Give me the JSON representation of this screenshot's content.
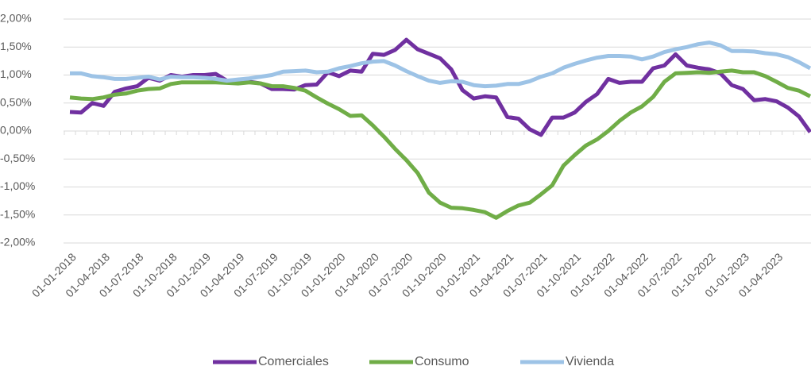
{
  "chart_data": {
    "type": "line",
    "categories": [
      "01-01-2018",
      null,
      null,
      "01-04-2018",
      null,
      null,
      "01-07-2018",
      null,
      null,
      "01-10-2018",
      null,
      null,
      "01-01-2019",
      null,
      null,
      "01-04-2019",
      null,
      null,
      "01-07-2019",
      null,
      null,
      "01-10-2019",
      null,
      null,
      "01-01-2020",
      null,
      null,
      "01-04-2020",
      null,
      null,
      "01-07-2020",
      null,
      null,
      "01-10-2020",
      null,
      null,
      "01-01-2021",
      null,
      null,
      "01-04-2021",
      null,
      null,
      "01-07-2021",
      null,
      null,
      "01-10-2021",
      null,
      null,
      "01-01-2022",
      null,
      null,
      "01-04-2022",
      null,
      null,
      "01-07-2022",
      null,
      null,
      "01-10-2022",
      null,
      null,
      "01-01-2023",
      null,
      null,
      "01-04-2023",
      null,
      null,
      null
    ],
    "series": [
      {
        "name": "Comerciales",
        "color": "#7030a0",
        "values": [
          0.34,
          0.33,
          0.5,
          0.45,
          0.7,
          0.76,
          0.8,
          0.95,
          0.9,
          1.0,
          0.97,
          1.0,
          1.0,
          1.02,
          0.9,
          0.9,
          0.88,
          0.85,
          0.75,
          0.75,
          0.74,
          0.82,
          0.83,
          1.05,
          0.98,
          1.08,
          1.06,
          1.38,
          1.36,
          1.45,
          1.63,
          1.46,
          1.38,
          1.3,
          1.1,
          0.73,
          0.58,
          0.62,
          0.6,
          0.25,
          0.22,
          0.03,
          -0.07,
          0.24,
          0.24,
          0.33,
          0.52,
          0.66,
          0.93,
          0.86,
          0.88,
          0.88,
          1.12,
          1.17,
          1.37,
          1.17,
          1.13,
          1.1,
          1.03,
          0.82,
          0.75,
          0.55,
          0.57,
          0.53,
          0.42,
          0.26,
          -0.02
        ]
      },
      {
        "name": "Consumo",
        "color": "#70ad47",
        "values": [
          0.6,
          0.58,
          0.57,
          0.6,
          0.65,
          0.67,
          0.72,
          0.75,
          0.76,
          0.84,
          0.87,
          0.87,
          0.87,
          0.87,
          0.86,
          0.85,
          0.87,
          0.85,
          0.8,
          0.8,
          0.77,
          0.72,
          0.6,
          0.49,
          0.39,
          0.27,
          0.28,
          0.1,
          -0.1,
          -0.32,
          -0.52,
          -0.75,
          -1.1,
          -1.28,
          -1.37,
          -1.38,
          -1.41,
          -1.45,
          -1.55,
          -1.43,
          -1.33,
          -1.28,
          -1.13,
          -0.97,
          -0.62,
          -0.43,
          -0.26,
          -0.15,
          0.0,
          0.18,
          0.33,
          0.44,
          0.61,
          0.88,
          1.03,
          1.04,
          1.05,
          1.04,
          1.06,
          1.08,
          1.05,
          1.05,
          0.98,
          0.88,
          0.77,
          0.72,
          0.62
        ]
      },
      {
        "name": "Vivienda",
        "color": "#9dc3e6",
        "values": [
          1.03,
          1.03,
          0.98,
          0.96,
          0.93,
          0.93,
          0.95,
          0.97,
          0.92,
          0.97,
          0.96,
          0.96,
          0.95,
          0.93,
          0.9,
          0.92,
          0.94,
          0.97,
          1.0,
          1.06,
          1.07,
          1.08,
          1.05,
          1.06,
          1.12,
          1.16,
          1.21,
          1.24,
          1.25,
          1.17,
          1.07,
          0.98,
          0.9,
          0.86,
          0.89,
          0.88,
          0.82,
          0.8,
          0.81,
          0.84,
          0.84,
          0.89,
          0.97,
          1.03,
          1.13,
          1.2,
          1.26,
          1.31,
          1.34,
          1.34,
          1.33,
          1.28,
          1.33,
          1.41,
          1.46,
          1.5,
          1.55,
          1.58,
          1.53,
          1.43,
          1.43,
          1.42,
          1.39,
          1.37,
          1.32,
          1.23,
          1.12
        ]
      }
    ],
    "ylim": [
      -2,
      2
    ],
    "yticks": [
      {
        "value": -2,
        "label": "-2,00%"
      },
      {
        "value": -1.5,
        "label": "-1,50%"
      },
      {
        "value": -1,
        "label": "-1,00%"
      },
      {
        "value": -0.5,
        "label": "-0,50%"
      },
      {
        "value": 0,
        "label": "0,00%"
      },
      {
        "value": 0.5,
        "label": "0,50%"
      },
      {
        "value": 1,
        "label": "1,00%"
      },
      {
        "value": 1.5,
        "label": "1,50%"
      },
      {
        "value": 2,
        "label": "2,00%"
      }
    ],
    "grid": true,
    "legend": "bottom"
  }
}
